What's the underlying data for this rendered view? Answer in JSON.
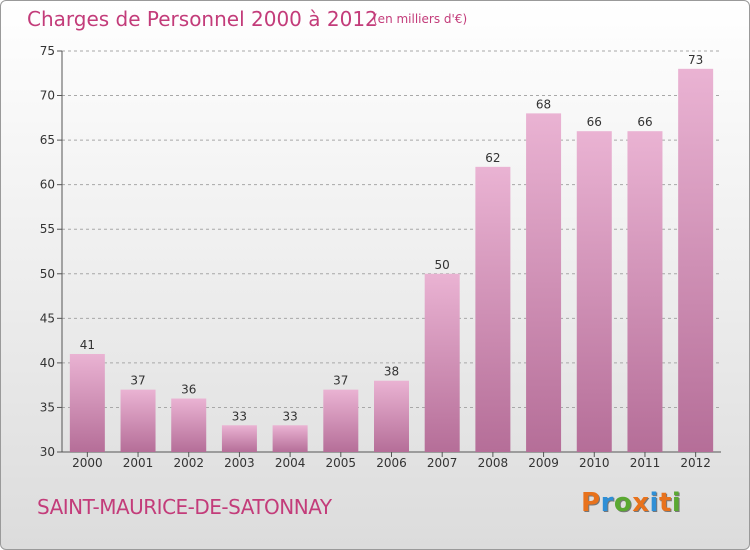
{
  "header": {
    "title": "Charges de Personnel 2000 à 2012",
    "subtitle": "(en milliers d'€)"
  },
  "footer": {
    "commune": "SAINT-MAURICE-DE-SATONNAY",
    "logo": "Proxiti",
    "logo_colors": [
      "#e8721c",
      "#2f8fd6",
      "#5aa832",
      "#e8721c",
      "#2f8fd6",
      "#e8721c",
      "#5aa832"
    ]
  },
  "colors": {
    "bar_light": "#eab3d3",
    "bar_dark": "#b56e98",
    "text_accent": "#c33c7a",
    "grid": "#a8a8a8"
  },
  "chart_data": {
    "type": "bar",
    "title": "Charges de Personnel 2000 à 2012",
    "subtitle": "(en milliers d'€)",
    "categories": [
      "2000",
      "2001",
      "2002",
      "2003",
      "2004",
      "2005",
      "2006",
      "2007",
      "2008",
      "2009",
      "2010",
      "2011",
      "2012"
    ],
    "values": [
      41,
      37,
      36,
      33,
      33,
      37,
      38,
      50,
      62,
      68,
      66,
      66,
      73
    ],
    "ylim": [
      30,
      75
    ],
    "yticks": [
      30,
      35,
      40,
      45,
      50,
      55,
      60,
      65,
      70,
      75
    ],
    "grid": "horizontal-dashed",
    "data_labels": true
  }
}
